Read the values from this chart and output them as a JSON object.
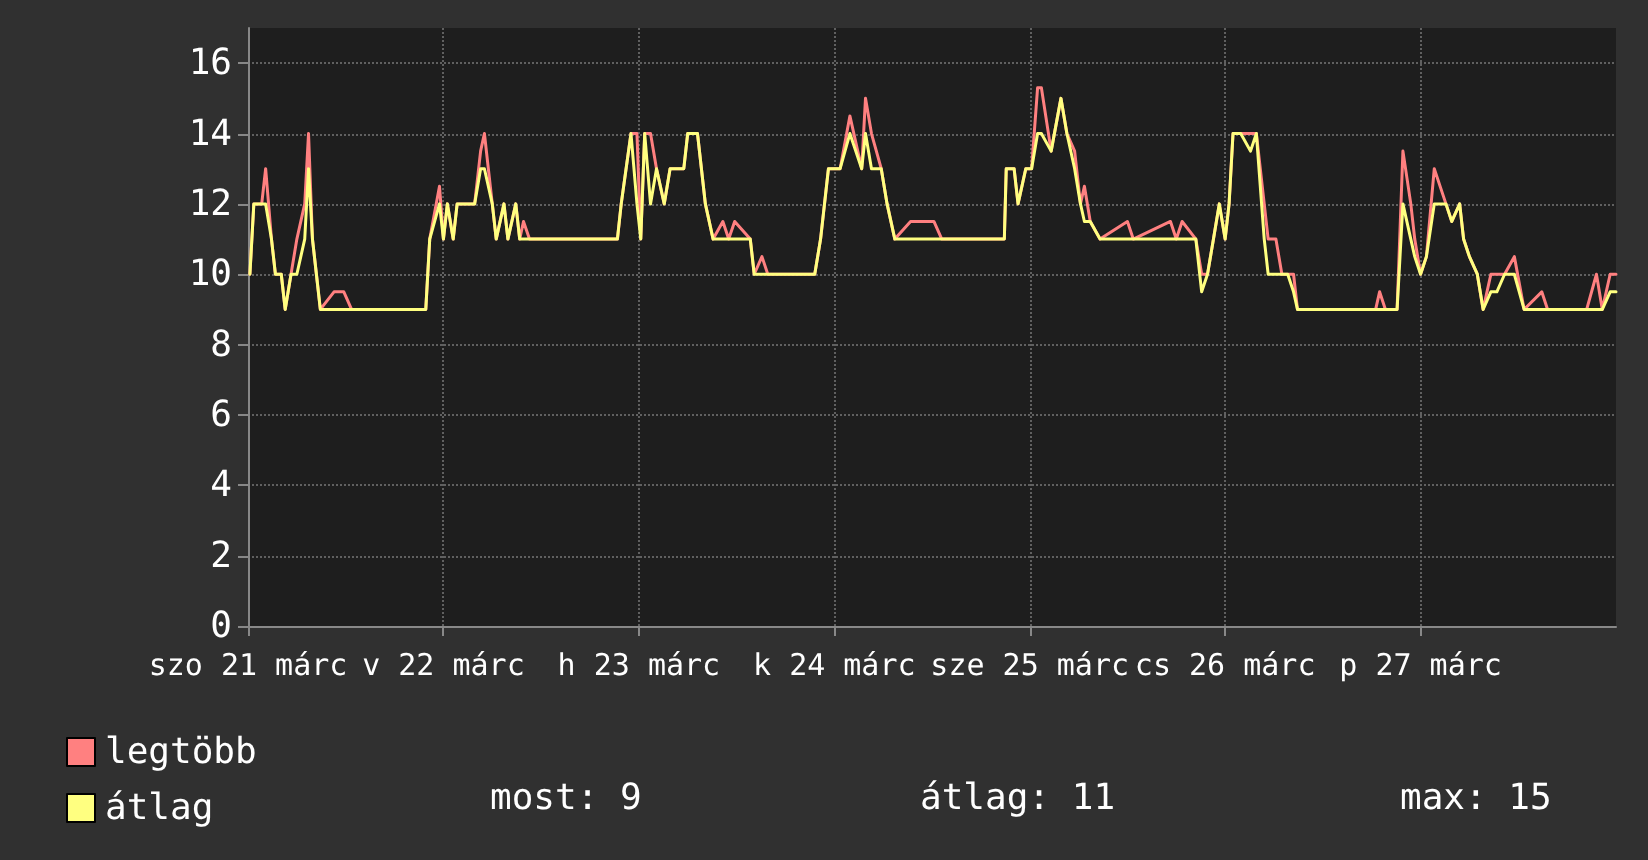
{
  "chart_data": {
    "type": "line",
    "x": [
      "--03-21T00:14",
      "--03-21T00:43",
      "--03-21T01:41",
      "--03-21T02:10",
      "--03-21T02:53",
      "--03-21T03:22",
      "--03-21T04:05",
      "--03-21T04:34",
      "--03-21T05:17",
      "--03-21T06:00",
      "--03-21T06:58",
      "--03-21T07:26",
      "--03-21T07:55",
      "--03-21T08:24",
      "--03-21T08:53",
      "--03-21T10:34",
      "--03-21T11:46",
      "--03-21T12:43",
      "--03-21T21:50",
      "--03-21T22:19",
      "--03-21T23:31",
      "--03-22T00:00",
      "--03-22T00:29",
      "--03-22T01:12",
      "--03-22T01:41",
      "--03-22T03:50",
      "--03-22T04:34",
      "--03-22T05:02",
      "--03-22T06:00",
      "--03-22T06:29",
      "--03-22T07:26",
      "--03-22T07:55",
      "--03-22T08:53",
      "--03-22T09:22",
      "--03-22T09:50",
      "--03-22T10:34",
      "--03-22T21:22",
      "--03-22T21:50",
      "--03-22T23:02",
      "--03-22T23:46",
      "--03-23T00:14",
      "--03-23T00:43",
      "--03-23T01:26",
      "--03-23T02:10",
      "--03-23T03:07",
      "--03-23T03:50",
      "--03-23T05:31",
      "--03-23T06:00",
      "--03-23T07:12",
      "--03-23T08:10",
      "--03-23T09:07",
      "--03-23T10:19",
      "--03-23T11:02",
      "--03-23T11:46",
      "--03-23T13:41",
      "--03-23T14:10",
      "--03-23T15:07",
      "--03-23T15:50",
      "--03-23T21:36",
      "--03-23T22:19",
      "--03-23T23:17",
      "--03-24T00:43",
      "--03-24T01:55",
      "--03-24T03:22",
      "--03-24T03:50",
      "--03-24T04:34",
      "--03-24T05:46",
      "--03-24T06:29",
      "--03-24T07:26",
      "--03-24T09:22",
      "--03-24T11:02",
      "--03-24T12:14",
      "--03-24T13:12",
      "--03-24T20:53",
      "--03-24T21:07",
      "--03-24T22:05",
      "--03-24T22:34",
      "--03-24T23:31",
      "--03-25T00:14",
      "--03-25T00:58",
      "--03-25T01:26",
      "--03-25T02:38",
      "--03-25T03:50",
      "--03-25T04:34",
      "--03-25T05:31",
      "--03-25T06:14",
      "--03-25T06:43",
      "--03-25T07:26",
      "--03-25T08:38",
      "--03-25T12:00",
      "--03-25T12:43",
      "--03-25T17:17",
      "--03-25T18:00",
      "--03-25T18:43",
      "--03-25T20:24",
      "--03-25T21:07",
      "--03-25T21:50",
      "--03-25T22:34",
      "--03-25T23:17",
      "--03-26T00:00",
      "--03-26T00:29",
      "--03-26T00:58",
      "--03-26T01:55",
      "--03-26T03:07",
      "--03-26T03:50",
      "--03-26T04:48",
      "--03-26T05:17",
      "--03-26T06:14",
      "--03-26T06:58",
      "--03-26T07:41",
      "--03-26T08:24",
      "--03-26T08:53",
      "--03-26T18:29",
      "--03-26T18:58",
      "--03-26T19:41",
      "--03-26T21:07",
      "--03-26T21:50",
      "--03-26T22:48",
      "--03-26T23:17",
      "--03-27T00:00",
      "--03-27T00:43",
      "--03-27T01:41",
      "--03-27T03:07",
      "--03-27T03:50",
      "--03-27T04:48",
      "--03-27T05:17",
      "--03-27T06:00",
      "--03-27T06:58",
      "--03-27T07:41",
      "--03-27T08:38",
      "--03-27T09:22",
      "--03-27T10:19",
      "--03-27T11:31",
      "--03-27T12:43",
      "--03-27T14:53",
      "--03-27T15:36",
      "--03-27T20:24",
      "--03-27T21:36",
      "--03-27T22:19",
      "--03-27T23:17",
      "--03-28T00:00"
    ],
    "series": [
      {
        "name": "legtöbb",
        "color": "#ff8080",
        "values": [
          10,
          12,
          12,
          13,
          11,
          10,
          10,
          9,
          10,
          11,
          12,
          14,
          11,
          10,
          9,
          9.5,
          9.5,
          9,
          9,
          11,
          12.5,
          11,
          12,
          11,
          12,
          12,
          13.5,
          14,
          12,
          11,
          12,
          11,
          12,
          11,
          11.5,
          11,
          11,
          12,
          14,
          14,
          11,
          14,
          14,
          13,
          12,
          13,
          13,
          14,
          14,
          12,
          11,
          11.5,
          11,
          11.5,
          11,
          10,
          10.5,
          10,
          10,
          11,
          13,
          13,
          14.5,
          13,
          15,
          14,
          13,
          12,
          11,
          11.5,
          11.5,
          11.5,
          11,
          11,
          13,
          13,
          12,
          13,
          13,
          15.3,
          15.3,
          13.5,
          15,
          14,
          13.5,
          12,
          12.5,
          11.5,
          11,
          11.5,
          11,
          11.5,
          11,
          11.5,
          11,
          10,
          10,
          11,
          12,
          11,
          12,
          14,
          14,
          14,
          14,
          12,
          11,
          11,
          10,
          10,
          10,
          9,
          9,
          9.5,
          9,
          9,
          13.5,
          12,
          11,
          10,
          10.5,
          13,
          12,
          11.5,
          12,
          11,
          10.5,
          10,
          9,
          10,
          10,
          10,
          10.5,
          9,
          9.5,
          9,
          9,
          10,
          9,
          10,
          10
        ]
      },
      {
        "name": "átlag",
        "color": "#ffff80",
        "values": [
          10,
          12,
          12,
          12,
          11,
          10,
          10,
          9,
          10,
          10,
          11,
          13,
          11,
          10,
          9,
          9,
          9,
          9,
          9,
          11,
          12,
          11,
          12,
          11,
          12,
          12,
          13,
          13,
          12,
          11,
          12,
          11,
          12,
          11,
          11,
          11,
          11,
          12,
          14,
          12,
          11,
          14,
          12,
          13,
          12,
          13,
          13,
          14,
          14,
          12,
          11,
          11,
          11,
          11,
          11,
          10,
          10,
          10,
          10,
          11,
          13,
          13,
          14,
          13,
          14,
          13,
          13,
          12,
          11,
          11,
          11,
          11,
          11,
          11,
          13,
          13,
          12,
          13,
          13,
          14,
          14,
          13.5,
          15,
          14,
          13,
          12,
          11.5,
          11.5,
          11,
          11,
          11,
          11,
          11,
          11,
          11,
          9.5,
          10,
          11,
          12,
          11,
          12,
          14,
          14,
          13.5,
          14,
          11,
          10,
          10,
          10,
          10,
          9.5,
          9,
          9,
          9,
          9,
          9,
          12,
          11,
          10.5,
          10,
          10.5,
          12,
          12,
          11.5,
          12,
          11,
          10.5,
          10,
          9,
          9.5,
          9.5,
          10,
          10,
          9,
          9,
          9,
          9,
          9,
          9,
          9.5,
          9.5
        ]
      }
    ],
    "xlim": [
      "--03-21",
      "--03-28"
    ],
    "xticks": [
      {
        "value": "--03-21",
        "label": "szo 21 márc"
      },
      {
        "value": "--03-22",
        "label": "v 22 márc"
      },
      {
        "value": "--03-23",
        "label": "h 23 márc"
      },
      {
        "value": "--03-24",
        "label": "k 24 márc"
      },
      {
        "value": "--03-25",
        "label": "sze 25 márc"
      },
      {
        "value": "--03-26",
        "label": "cs 26 márc"
      },
      {
        "value": "--03-27",
        "label": "p 27 márc"
      }
    ],
    "ylim": [
      0,
      17
    ],
    "yticks": [
      0,
      2,
      4,
      6,
      8,
      10,
      12,
      14,
      16
    ],
    "grid": true,
    "legend": "bottom left",
    "annotations": [
      "most: 9",
      "átlag: 11",
      "max: 15"
    ]
  }
}
